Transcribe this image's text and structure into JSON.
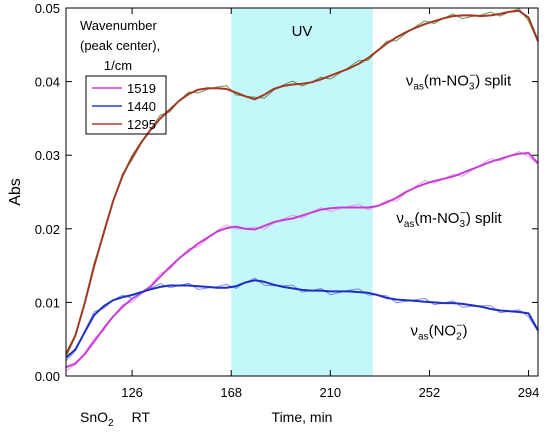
{
  "chart_data": {
    "type": "line",
    "title": "",
    "xlabel": "Time, min",
    "ylabel": "Abs",
    "xlim": [
      98,
      298
    ],
    "ylim": [
      0,
      0.05
    ],
    "x_ticks": [
      126,
      168,
      210,
      252,
      294
    ],
    "y_ticks": [
      0.0,
      0.01,
      0.02,
      0.03,
      0.04,
      0.05
    ],
    "y_tick_labels": [
      "0.00",
      "0.01",
      "0.02",
      "0.03",
      "0.04",
      "0.05"
    ],
    "grid": false,
    "legend_title": [
      "Wavenumber",
      "(peak center),",
      "1/cm"
    ],
    "legend_position": "top-left",
    "uv_band": {
      "label": "UV",
      "x_start": 168,
      "x_end": 228,
      "color": "#c4f7f9"
    },
    "bottom_caption": {
      "material": "SnO",
      "subscript": "2",
      "condition": "RT"
    },
    "annotations": [
      {
        "id": "ann-1295",
        "prefix": "ν",
        "sub": "as",
        "mid": "(m-NO",
        "sub2": "3",
        "sup2": "−",
        "suffix": ") split",
        "x": 242,
        "y": 0.0395
      },
      {
        "id": "ann-1440",
        "prefix": "ν",
        "sub": "as",
        "mid": "(m-NO",
        "sub2": "3",
        "sup2": "−",
        "suffix": ") split",
        "x": 238,
        "y": 0.0208
      },
      {
        "id": "ann-1519",
        "prefix": "ν",
        "sub": "as",
        "mid": "(NO",
        "sub2": "2",
        "sup2": "−",
        "suffix": ")",
        "x": 244,
        "y": 0.0055
      }
    ],
    "series": [
      {
        "name": "1519",
        "color": "#d23fd8",
        "smooth_color": "#c83fd0",
        "raw_color": "#e88aef",
        "x": [
          98,
          102,
          106,
          110,
          114,
          118,
          122,
          126,
          130,
          134,
          138,
          142,
          146,
          150,
          154,
          158,
          162,
          166,
          170,
          174,
          178,
          182,
          186,
          190,
          194,
          198,
          202,
          206,
          210,
          214,
          218,
          222,
          226,
          230,
          234,
          238,
          242,
          246,
          250,
          254,
          258,
          262,
          266,
          270,
          274,
          278,
          282,
          286,
          290,
          294,
          298
        ],
        "y": [
          0.0012,
          0.0017,
          0.003,
          0.0047,
          0.0065,
          0.0081,
          0.0094,
          0.0105,
          0.0113,
          0.0122,
          0.0135,
          0.0148,
          0.016,
          0.017,
          0.018,
          0.0188,
          0.0196,
          0.0201,
          0.0203,
          0.02,
          0.0199,
          0.0204,
          0.0209,
          0.0212,
          0.0214,
          0.0218,
          0.0222,
          0.0226,
          0.0228,
          0.0229,
          0.0229,
          0.0229,
          0.0229,
          0.0231,
          0.0236,
          0.0242,
          0.025,
          0.0256,
          0.0261,
          0.0265,
          0.0268,
          0.0271,
          0.0276,
          0.0281,
          0.0286,
          0.0291,
          0.0295,
          0.0299,
          0.0302,
          0.0303,
          0.0289
        ]
      },
      {
        "name": "1440",
        "color": "#2a3fcf",
        "smooth_color": "#1f2fc0",
        "raw_color": "#6e78e6",
        "x": [
          98,
          102,
          106,
          110,
          114,
          118,
          122,
          126,
          130,
          134,
          138,
          142,
          146,
          150,
          154,
          158,
          162,
          166,
          170,
          174,
          178,
          182,
          186,
          190,
          194,
          198,
          202,
          206,
          210,
          214,
          218,
          222,
          226,
          230,
          234,
          238,
          242,
          246,
          250,
          254,
          258,
          262,
          266,
          270,
          274,
          278,
          282,
          286,
          290,
          294,
          298
        ],
        "y": [
          0.0025,
          0.0036,
          0.006,
          0.0083,
          0.0095,
          0.0103,
          0.0107,
          0.011,
          0.0114,
          0.0118,
          0.0121,
          0.0123,
          0.0123,
          0.0123,
          0.0122,
          0.0121,
          0.012,
          0.012,
          0.0122,
          0.0127,
          0.013,
          0.0128,
          0.0124,
          0.0121,
          0.0119,
          0.0117,
          0.0116,
          0.0116,
          0.0115,
          0.0115,
          0.0115,
          0.0114,
          0.0113,
          0.011,
          0.0106,
          0.0104,
          0.0103,
          0.0102,
          0.0101,
          0.01,
          0.0099,
          0.0099,
          0.0098,
          0.0096,
          0.0094,
          0.0091,
          0.0089,
          0.0088,
          0.0087,
          0.0085,
          0.0062
        ]
      },
      {
        "name": "1295",
        "color": "#a0432c",
        "smooth_color": "#a03a22",
        "raw_color": "#5a7a3a",
        "x": [
          98,
          102,
          106,
          110,
          114,
          118,
          122,
          126,
          130,
          134,
          138,
          142,
          146,
          150,
          154,
          158,
          162,
          166,
          170,
          174,
          178,
          182,
          186,
          190,
          194,
          198,
          202,
          206,
          210,
          214,
          218,
          222,
          226,
          230,
          234,
          238,
          242,
          246,
          250,
          254,
          258,
          262,
          266,
          270,
          274,
          278,
          282,
          286,
          290,
          294,
          298
        ],
        "y": [
          0.003,
          0.0055,
          0.01,
          0.015,
          0.0195,
          0.0238,
          0.0272,
          0.0298,
          0.0318,
          0.0335,
          0.035,
          0.0362,
          0.0374,
          0.0383,
          0.0389,
          0.0391,
          0.0391,
          0.039,
          0.0385,
          0.038,
          0.0376,
          0.0382,
          0.039,
          0.0394,
          0.0396,
          0.0397,
          0.0399,
          0.0403,
          0.0408,
          0.0413,
          0.0418,
          0.0424,
          0.0432,
          0.0442,
          0.0452,
          0.046,
          0.0467,
          0.0473,
          0.0478,
          0.0482,
          0.0486,
          0.0489,
          0.049,
          0.049,
          0.0489,
          0.049,
          0.0492,
          0.0495,
          0.0496,
          0.0487,
          0.0455
        ]
      }
    ]
  }
}
